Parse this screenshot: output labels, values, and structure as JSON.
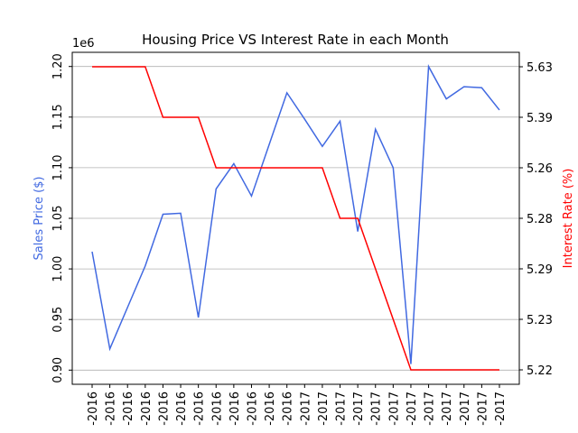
{
  "chart_data": {
    "type": "line",
    "title": "Housing Price VS Interest Rate in each Month",
    "y_label": "Sales Price ($)",
    "y2_label": "Interest Rate (%)",
    "y_offset_text": "1e6",
    "categories": [
      "-2016",
      "-2016",
      "-2016",
      "-2016",
      "-2016",
      "-2016",
      "-2016",
      "-2016",
      "-2016",
      "-2016",
      "-2016",
      "-2016",
      "-2017",
      "-2017",
      "-2017",
      "-2017",
      "-2017",
      "-2017",
      "-2017",
      "-2017",
      "-2017",
      "-2017",
      "-2017",
      "-2017"
    ],
    "series": [
      {
        "name": "Sales Price ($)",
        "color": "#4169e1",
        "values": [
          1.017,
          0.921,
          0.962,
          1.003,
          1.054,
          1.055,
          0.952,
          1.079,
          1.104,
          1.072,
          1.123,
          1.174,
          1.148,
          1.121,
          1.146,
          1.037,
          1.138,
          1.1,
          0.906,
          1.2,
          1.168,
          1.18,
          1.179,
          1.157
        ]
      },
      {
        "name": "Interest Rate (%)",
        "color": "#ff0000",
        "axis": "y2",
        "values": [
          5.63,
          5.63,
          5.63,
          5.63,
          5.39,
          5.39,
          5.39,
          5.26,
          5.26,
          5.26,
          5.26,
          5.26,
          5.26,
          5.26,
          5.28,
          5.28,
          5.29,
          5.23,
          5.22,
          5.22,
          5.22,
          5.22,
          5.22,
          5.22
        ]
      }
    ],
    "ylim": [
      0.886,
      1.214
    ],
    "yticks": [
      {
        "value": 0.9,
        "label": "0.90"
      },
      {
        "value": 0.95,
        "label": "0.95"
      },
      {
        "value": 1.0,
        "label": "1.00"
      },
      {
        "value": 1.05,
        "label": "1.05"
      },
      {
        "value": 1.1,
        "label": "1.10"
      },
      {
        "value": 1.15,
        "label": "1.15"
      },
      {
        "value": 1.2,
        "label": "1.20"
      }
    ],
    "y2categories": [
      5.22,
      5.23,
      5.29,
      5.28,
      5.26,
      5.39,
      5.63
    ],
    "grid": true
  }
}
